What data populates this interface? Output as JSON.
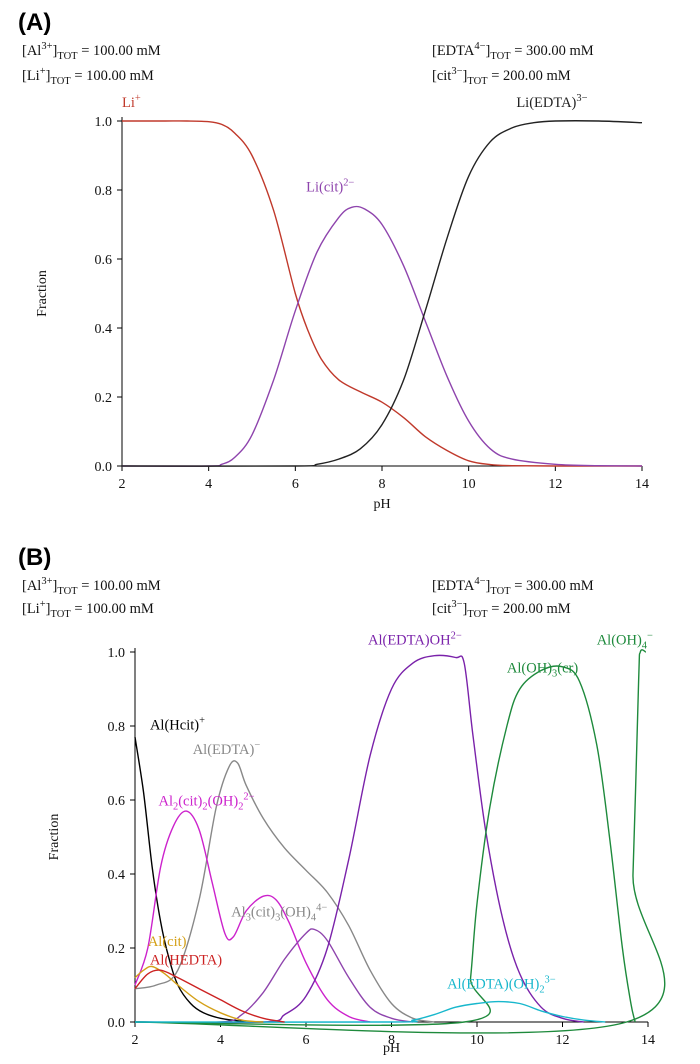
{
  "chart_data": [
    {
      "type": "line",
      "panel_label": "(A)",
      "xlabel": "pH",
      "ylabel": "Fraction",
      "xlim": [
        2,
        14
      ],
      "ylim": [
        0,
        1.0
      ],
      "xticks": [
        "2",
        "4",
        "6",
        "8",
        "10",
        "12",
        "14"
      ],
      "yticks": [
        "0.0",
        "0.2",
        "0.4",
        "0.6",
        "0.8",
        "1.0"
      ],
      "conditions": {
        "al_total": {
          "species": "[Al",
          "charge": "3+",
          "sub": "TOT",
          "value": "= 100.00 mM"
        },
        "li_total": {
          "species": "[Li",
          "charge": "+",
          "sub": "TOT",
          "value": "= 100.00 mM"
        },
        "edta_total": {
          "species": "[EDTA",
          "charge": "4−",
          "sub": "TOT",
          "value": "= 300.00 mM"
        },
        "cit_total": {
          "species": "[cit",
          "charge": "3−",
          "sub": "TOT",
          "value": "= 200.00 mM"
        }
      },
      "series": [
        {
          "id": "li",
          "color": "#c0392b",
          "label": {
            "text": "Li",
            "sup": "+",
            "sub": "",
            "tail": ""
          },
          "label_at": [
            2.0,
            1.04
          ],
          "points": [
            [
              2,
              1
            ],
            [
              2.5,
              1
            ],
            [
              3,
              1
            ],
            [
              3.5,
              1
            ],
            [
              4,
              0.998
            ],
            [
              4.3,
              0.99
            ],
            [
              4.6,
              0.965
            ],
            [
              5,
              0.9
            ],
            [
              5.5,
              0.74
            ],
            [
              6,
              0.5
            ],
            [
              6.3,
              0.39
            ],
            [
              6.6,
              0.31
            ],
            [
              7,
              0.25
            ],
            [
              7.5,
              0.215
            ],
            [
              8,
              0.185
            ],
            [
              8.5,
              0.14
            ],
            [
              9,
              0.085
            ],
            [
              9.5,
              0.045
            ],
            [
              10,
              0.015
            ],
            [
              10.5,
              0.004
            ],
            [
              11,
              0.001
            ],
            [
              12,
              0
            ],
            [
              14,
              0
            ]
          ]
        },
        {
          "id": "li_cit",
          "color": "#8e44ad",
          "label": {
            "text": "Li(cit)",
            "sup": "2−",
            "sub": "",
            "tail": ""
          },
          "label_at": [
            6.25,
            0.795
          ],
          "points": [
            [
              2,
              0
            ],
            [
              4,
              0
            ],
            [
              4.3,
              0.005
            ],
            [
              4.6,
              0.025
            ],
            [
              5,
              0.09
            ],
            [
              5.5,
              0.25
            ],
            [
              6,
              0.45
            ],
            [
              6.5,
              0.62
            ],
            [
              7,
              0.72
            ],
            [
              7.3,
              0.75
            ],
            [
              7.6,
              0.745
            ],
            [
              8,
              0.7
            ],
            [
              8.5,
              0.58
            ],
            [
              9,
              0.42
            ],
            [
              9.5,
              0.26
            ],
            [
              10,
              0.13
            ],
            [
              10.5,
              0.05
            ],
            [
              11,
              0.02
            ],
            [
              12,
              0.005
            ],
            [
              13,
              0.001
            ],
            [
              14,
              0
            ]
          ]
        },
        {
          "id": "li_edta",
          "color": "#222222",
          "label": {
            "text": "Li(EDTA)",
            "sup": "3−",
            "sub": "",
            "tail": ""
          },
          "label_at": [
            11.1,
            1.04
          ],
          "points": [
            [
              2,
              0
            ],
            [
              6,
              0
            ],
            [
              6.5,
              0.005
            ],
            [
              7,
              0.02
            ],
            [
              7.5,
              0.05
            ],
            [
              8,
              0.12
            ],
            [
              8.5,
              0.25
            ],
            [
              9,
              0.45
            ],
            [
              9.5,
              0.66
            ],
            [
              10,
              0.84
            ],
            [
              10.5,
              0.94
            ],
            [
              11,
              0.98
            ],
            [
              11.5,
              0.995
            ],
            [
              12,
              1
            ],
            [
              13,
              1
            ],
            [
              14,
              0.995
            ]
          ]
        }
      ]
    },
    {
      "type": "line",
      "panel_label": "(B)",
      "xlabel": "pH",
      "ylabel": "Fraction",
      "xlim": [
        2,
        14
      ],
      "ylim": [
        0,
        1.0
      ],
      "xticks": [
        "2",
        "4",
        "6",
        "8",
        "10",
        "12",
        "14"
      ],
      "yticks": [
        "0.0",
        "0.2",
        "0.4",
        "0.6",
        "0.8",
        "1.0"
      ],
      "conditions": {
        "al_total": {
          "species": "[Al",
          "charge": "3+",
          "sub": "TOT",
          "value": "= 100.00 mM"
        },
        "li_total": {
          "species": "[Li",
          "charge": "+",
          "sub": "TOT",
          "value": "= 100.00 mM"
        },
        "edta_total": {
          "species": "[EDTA",
          "charge": "4−",
          "sub": "TOT",
          "value": "= 300.00 mM"
        },
        "cit_total": {
          "species": "[cit",
          "charge": "3−",
          "sub": "TOT",
          "value": "= 200.00 mM"
        }
      },
      "series": [
        {
          "id": "al_hcit",
          "color": "#000000",
          "label": {
            "text": "Al(Hcit)",
            "sup": "+",
            "sub": "",
            "tail": ""
          },
          "label_at": [
            2.35,
            0.79
          ],
          "points": [
            [
              2,
              0.77
            ],
            [
              2.2,
              0.62
            ],
            [
              2.4,
              0.42
            ],
            [
              2.6,
              0.27
            ],
            [
              2.8,
              0.17
            ],
            [
              3,
              0.1
            ],
            [
              3.3,
              0.05
            ],
            [
              3.6,
              0.025
            ],
            [
              4,
              0.01
            ],
            [
              4.5,
              0.002
            ],
            [
              5,
              0
            ]
          ]
        },
        {
          "id": "al_edta",
          "color": "#888888",
          "label": {
            "text": "Al(EDTA)",
            "sup": "−",
            "sub": "",
            "tail": ""
          },
          "label_at": [
            3.35,
            0.725
          ],
          "points": [
            [
              2,
              0.09
            ],
            [
              2.5,
              0.1
            ],
            [
              3,
              0.14
            ],
            [
              3.5,
              0.33
            ],
            [
              3.9,
              0.58
            ],
            [
              4.2,
              0.69
            ],
            [
              4.4,
              0.7
            ],
            [
              4.6,
              0.64
            ],
            [
              5,
              0.55
            ],
            [
              5.5,
              0.47
            ],
            [
              6,
              0.41
            ],
            [
              6.5,
              0.35
            ],
            [
              7,
              0.26
            ],
            [
              7.5,
              0.14
            ],
            [
              8,
              0.05
            ],
            [
              8.5,
              0.01
            ],
            [
              9,
              0
            ]
          ]
        },
        {
          "id": "al2_cit2_oh2",
          "color": "#cc22cc",
          "label": {
            "text": "Al",
            "sup": "2−",
            "sub": "",
            "tail": "",
            "parts": [
              [
                "Al",
                ""
              ],
              [
                "2",
                "sub"
              ],
              [
                "(cit)",
                ""
              ],
              [
                "2",
                "sub"
              ],
              [
                "(OH)",
                ""
              ],
              [
                "2",
                "sub"
              ],
              [
                "2−",
                "sup"
              ]
            ]
          },
          "label_at": [
            2.55,
            0.585
          ],
          "points": [
            [
              2,
              0.1
            ],
            [
              2.3,
              0.2
            ],
            [
              2.6,
              0.42
            ],
            [
              2.9,
              0.53
            ],
            [
              3.2,
              0.57
            ],
            [
              3.5,
              0.52
            ],
            [
              3.8,
              0.38
            ],
            [
              4.1,
              0.24
            ],
            [
              4.3,
              0.23
            ],
            [
              4.6,
              0.3
            ],
            [
              5,
              0.34
            ],
            [
              5.3,
              0.33
            ],
            [
              5.6,
              0.27
            ],
            [
              6,
              0.16
            ],
            [
              6.5,
              0.06
            ],
            [
              7,
              0.015
            ],
            [
              7.5,
              0
            ]
          ]
        },
        {
          "id": "al3_cit3_oh4",
          "color": "#8e44ad",
          "label": {
            "text": "Al",
            "sup": "4−",
            "sub": "",
            "tail": "",
            "parts": [
              [
                "Al",
                ""
              ],
              [
                "3",
                "sub"
              ],
              [
                "(cit)",
                ""
              ],
              [
                "3",
                "sub"
              ],
              [
                "(OH)",
                ""
              ],
              [
                "4",
                "sub"
              ],
              [
                "4−",
                "sup"
              ]
            ]
          },
          "label_at": [
            4.25,
            0.285
          ],
          "label_color": "#888888",
          "points": [
            [
              2,
              0
            ],
            [
              4,
              0
            ],
            [
              4.5,
              0.02
            ],
            [
              5,
              0.08
            ],
            [
              5.5,
              0.17
            ],
            [
              6,
              0.24
            ],
            [
              6.2,
              0.25
            ],
            [
              6.5,
              0.22
            ],
            [
              7,
              0.12
            ],
            [
              7.5,
              0.04
            ],
            [
              8,
              0.01
            ],
            [
              8.5,
              0
            ]
          ]
        },
        {
          "id": "al_edta_oh",
          "color": "#7a22aa",
          "label": {
            "text": "Al(EDTA)OH",
            "sup": "2−",
            "sub": "",
            "tail": ""
          },
          "label_at": [
            7.45,
            1.02
          ],
          "points": [
            [
              2,
              0
            ],
            [
              5,
              0
            ],
            [
              5.5,
              0.02
            ],
            [
              6,
              0.07
            ],
            [
              6.5,
              0.2
            ],
            [
              7,
              0.44
            ],
            [
              7.5,
              0.72
            ],
            [
              8,
              0.9
            ],
            [
              8.5,
              0.97
            ],
            [
              9,
              0.99
            ],
            [
              9.5,
              0.985
            ],
            [
              9.7,
              0.97
            ],
            [
              9.9,
              0.78
            ],
            [
              10.2,
              0.52
            ],
            [
              10.6,
              0.28
            ],
            [
              11,
              0.13
            ],
            [
              11.5,
              0.04
            ],
            [
              12,
              0.01
            ],
            [
              12.5,
              0
            ]
          ]
        },
        {
          "id": "al_oh3_cr",
          "color": "#1e8a3c",
          "label": {
            "text": "Al(OH)",
            "sup": "",
            "sub": "3",
            "tail": "(cr)"
          },
          "label_at": [
            10.7,
            0.945
          ],
          "points": [
            [
              2,
              0
            ],
            [
              9.7,
              0
            ],
            [
              9.85,
              0.12
            ],
            [
              10,
              0.32
            ],
            [
              10.3,
              0.58
            ],
            [
              10.7,
              0.8
            ],
            [
              11,
              0.9
            ],
            [
              11.5,
              0.95
            ],
            [
              12,
              0.96
            ],
            [
              12.4,
              0.92
            ],
            [
              12.8,
              0.75
            ],
            [
              13.1,
              0.5
            ],
            [
              13.4,
              0.2
            ],
            [
              13.6,
              0.05
            ],
            [
              13.7,
              0
            ]
          ]
        },
        {
          "id": "al_oh4",
          "color": "#1e8a3c",
          "label": {
            "text": "Al(OH)",
            "sup": "−",
            "sub": "4",
            "tail": ""
          },
          "label_at": [
            12.8,
            1.02
          ],
          "points": [
            [
              2,
              0
            ],
            [
              13.5,
              0
            ],
            [
              13.65,
              0.4
            ],
            [
              13.78,
              0.92
            ],
            [
              13.82,
              1
            ],
            [
              13.95,
              1
            ]
          ]
        },
        {
          "id": "al_edta_oh2",
          "color": "#17b7cc",
          "label": {
            "text": "Al(EDTA)(OH)",
            "sup": "3−",
            "sub": "2",
            "tail": ""
          },
          "label_at": [
            9.3,
            0.09
          ],
          "points": [
            [
              2,
              0
            ],
            [
              8,
              0
            ],
            [
              8.5,
              0.005
            ],
            [
              9,
              0.02
            ],
            [
              9.5,
              0.04
            ],
            [
              10,
              0.05
            ],
            [
              10.5,
              0.055
            ],
            [
              11,
              0.05
            ],
            [
              11.5,
              0.03
            ],
            [
              12,
              0.015
            ],
            [
              12.5,
              0.005
            ],
            [
              13,
              0
            ]
          ]
        },
        {
          "id": "al_cit",
          "color": "#d4a017",
          "label": {
            "text": "Al(cit)",
            "sup": "",
            "sub": "",
            "tail": ""
          },
          "label_at": [
            2.3,
            0.205
          ],
          "points": [
            [
              2,
              0.12
            ],
            [
              2.2,
              0.14
            ],
            [
              2.4,
              0.15
            ],
            [
              2.7,
              0.13
            ],
            [
              3,
              0.1
            ],
            [
              3.5,
              0.055
            ],
            [
              4,
              0.025
            ],
            [
              4.5,
              0.005
            ],
            [
              5,
              0
            ]
          ]
        },
        {
          "id": "al_hedta",
          "color": "#cc2222",
          "label": {
            "text": "Al(HEDTA)",
            "sup": "",
            "sub": "",
            "tail": ""
          },
          "label_at": [
            2.35,
            0.155
          ],
          "points": [
            [
              2,
              0.09
            ],
            [
              2.3,
              0.13
            ],
            [
              2.6,
              0.14
            ],
            [
              3,
              0.12
            ],
            [
              3.5,
              0.09
            ],
            [
              4,
              0.06
            ],
            [
              4.5,
              0.03
            ],
            [
              5,
              0.01
            ],
            [
              5.5,
              0
            ]
          ]
        }
      ]
    }
  ]
}
